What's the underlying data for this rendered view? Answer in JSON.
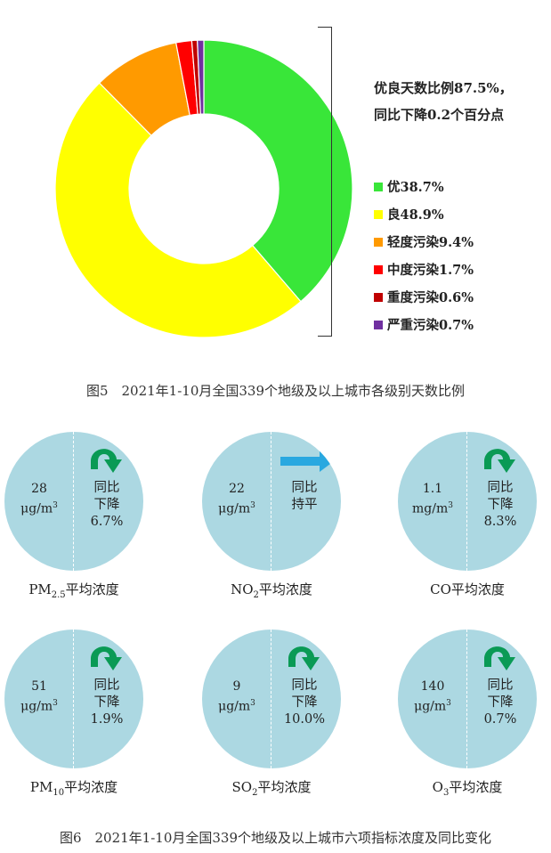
{
  "chart_data": [
    {
      "type": "pie",
      "variant": "donut",
      "categories": [
        "优",
        "良",
        "轻度污染",
        "中度污染",
        "重度污染",
        "严重污染"
      ],
      "values": [
        38.7,
        48.9,
        9.4,
        1.7,
        0.6,
        0.7
      ],
      "colors": [
        "#39e639",
        "#ffff00",
        "#ff9a00",
        "#ff0000",
        "#c00000",
        "#7030a0"
      ],
      "legend": [
        {
          "label": "优38.7%",
          "color": "#39e639"
        },
        {
          "label": "良48.9%",
          "color": "#ffff00"
        },
        {
          "label": "轻度污染9.4%",
          "color": "#ff9a00"
        },
        {
          "label": "中度污染1.7%",
          "color": "#ff0000"
        },
        {
          "label": "重度污染0.6%",
          "color": "#c00000"
        },
        {
          "label": "严重污染0.7%",
          "color": "#7030a0"
        }
      ],
      "summary": [
        "优良天数比例87.5%，",
        "同比下降0.2个百分点"
      ],
      "caption": "图5　2021年1-10月全国339个地级及以上城市各级别天数比例",
      "legend_position": "right"
    },
    {
      "type": "table",
      "caption": "图6　2021年1-10月全国339个地级及以上城市六项指标浓度及同比变化",
      "indicators": [
        {
          "base": "PM",
          "sub": "2.5",
          "suffix": "平均浓度",
          "value": "28",
          "unit_base": "μg/m",
          "unit_sup": "3",
          "change_lines": [
            "同比",
            "下降",
            "6.7%"
          ],
          "trend": "down",
          "change_pct": -6.7
        },
        {
          "base": "NO",
          "sub": "2",
          "suffix": "平均浓度",
          "value": "22",
          "unit_base": "μg/m",
          "unit_sup": "3",
          "change_lines": [
            "同比",
            "持平",
            ""
          ],
          "trend": "flat",
          "change_pct": 0
        },
        {
          "base": "CO",
          "sub": "",
          "suffix": "平均浓度",
          "value": "1.1",
          "unit_base": "mg/m",
          "unit_sup": "3",
          "change_lines": [
            "同比",
            "下降",
            "8.3%"
          ],
          "trend": "down",
          "change_pct": -8.3
        },
        {
          "base": "PM",
          "sub": "10",
          "suffix": "平均浓度",
          "value": "51",
          "unit_base": "μg/m",
          "unit_sup": "3",
          "change_lines": [
            "同比",
            "下降",
            "1.9%"
          ],
          "trend": "down",
          "change_pct": -1.9
        },
        {
          "base": "SO",
          "sub": "2",
          "suffix": "平均浓度",
          "value": "9",
          "unit_base": "μg/m",
          "unit_sup": "3",
          "change_lines": [
            "同比",
            "下降",
            "10.0%"
          ],
          "trend": "down",
          "change_pct": -10.0
        },
        {
          "base": "O",
          "sub": "3",
          "suffix": "平均浓度",
          "value": "140",
          "unit_base": "μg/m",
          "unit_sup": "3",
          "change_lines": [
            "同比",
            "下降",
            "0.7%"
          ],
          "trend": "down",
          "change_pct": -0.7
        }
      ],
      "colors": {
        "circle": "#acd8e2",
        "down_arrow": "#0a9a55",
        "flat_arrow": "#29a8e0"
      }
    }
  ]
}
